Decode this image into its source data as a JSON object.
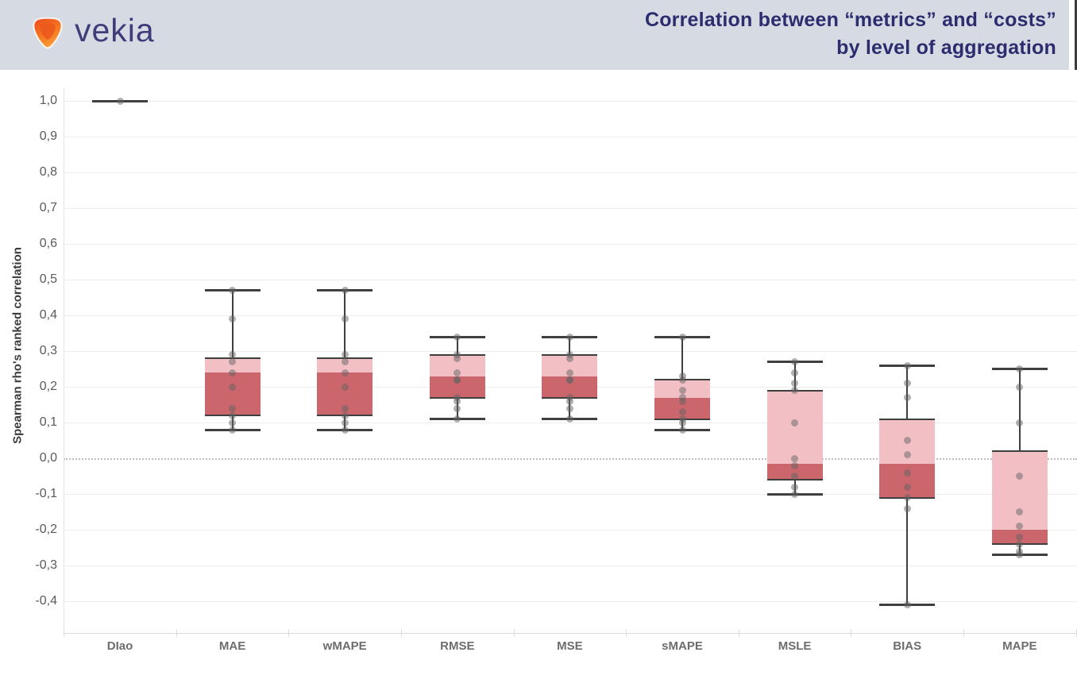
{
  "header": {
    "logo_text": "vekia",
    "title_line1": "Correlation between “metrics” and “costs”",
    "title_line2": "by level of  aggregation"
  },
  "colors": {
    "header_bg": "#d6dbe3",
    "header_edge": "#3a3a40",
    "title_text": "#2b2d6e",
    "logo_navy": "#3d3d7a",
    "logo_orange_dark": "#ee4e1f",
    "logo_orange_light": "#fba33c",
    "box_light_pink": "#f2c0c4",
    "box_dark_red": "#cb666d",
    "box_line": "#3f3f3f",
    "dot_gray": "#646464",
    "grid": "#ededed",
    "zero_line": "#bdbdbd",
    "axis_text": "#5a5a5a",
    "x_label_text": "#6d6d6d"
  },
  "chart_data": {
    "type": "box",
    "title": "Correlation between “metrics” and “costs” by level of aggregation",
    "ylabel": "Spearman rho's ranked correlation",
    "ylim": [
      -0.5,
      1.05
    ],
    "grid": true,
    "zero_line_style": "dotted",
    "decimal_separator": ",",
    "y_ticks": [
      {
        "value": 1.0,
        "label": "1,0"
      },
      {
        "value": 0.9,
        "label": "0,9"
      },
      {
        "value": 0.8,
        "label": "0,8"
      },
      {
        "value": 0.7,
        "label": "0,7"
      },
      {
        "value": 0.6,
        "label": "0,6"
      },
      {
        "value": 0.5,
        "label": "0,5"
      },
      {
        "value": 0.4,
        "label": "0,4"
      },
      {
        "value": 0.3,
        "label": "0,3"
      },
      {
        "value": 0.2,
        "label": "0,2"
      },
      {
        "value": 0.1,
        "label": "0,1"
      },
      {
        "value": 0.0,
        "label": "0,0"
      },
      {
        "value": -0.1,
        "label": "-0,1"
      },
      {
        "value": -0.2,
        "label": "-0,2"
      },
      {
        "value": -0.3,
        "label": "-0,3"
      },
      {
        "value": -0.4,
        "label": "-0,4"
      }
    ],
    "categories": [
      "DIao",
      "MAE",
      "wMAPE",
      "RMSE",
      "MSE",
      "sMAPE",
      "MSLE",
      "BIAS",
      "MAPE"
    ],
    "boxes": [
      {
        "label": "DIao",
        "whisker_high": 1.0,
        "q3": 1.0,
        "median": 1.0,
        "q1": 1.0,
        "whisker_low": 1.0,
        "points": [
          1.0
        ]
      },
      {
        "label": "MAE",
        "whisker_high": 0.47,
        "q3": 0.28,
        "median": 0.24,
        "q1": 0.12,
        "whisker_low": 0.08,
        "points": [
          0.47,
          0.39,
          0.29,
          0.27,
          0.24,
          0.2,
          0.14,
          0.12,
          0.1,
          0.08
        ]
      },
      {
        "label": "wMAPE",
        "whisker_high": 0.47,
        "q3": 0.28,
        "median": 0.24,
        "q1": 0.12,
        "whisker_low": 0.08,
        "points": [
          0.47,
          0.39,
          0.29,
          0.27,
          0.24,
          0.2,
          0.14,
          0.12,
          0.1,
          0.08
        ]
      },
      {
        "label": "RMSE",
        "whisker_high": 0.34,
        "q3": 0.29,
        "median": 0.23,
        "q1": 0.17,
        "whisker_low": 0.11,
        "points": [
          0.34,
          0.29,
          0.28,
          0.24,
          0.22,
          0.22,
          0.17,
          0.16,
          0.14,
          0.11
        ]
      },
      {
        "label": "MSE",
        "whisker_high": 0.34,
        "q3": 0.29,
        "median": 0.23,
        "q1": 0.17,
        "whisker_low": 0.11,
        "points": [
          0.34,
          0.29,
          0.28,
          0.24,
          0.22,
          0.22,
          0.17,
          0.16,
          0.14,
          0.11
        ]
      },
      {
        "label": "sMAPE",
        "whisker_high": 0.34,
        "q3": 0.22,
        "median": 0.17,
        "q1": 0.11,
        "whisker_low": 0.08,
        "points": [
          0.34,
          0.23,
          0.22,
          0.19,
          0.17,
          0.16,
          0.13,
          0.11,
          0.1,
          0.08
        ]
      },
      {
        "label": "MSLE",
        "whisker_high": 0.27,
        "q3": 0.19,
        "median": -0.015,
        "q1": -0.06,
        "whisker_low": -0.1,
        "points": [
          0.27,
          0.24,
          0.21,
          0.19,
          0.1,
          0.0,
          -0.02,
          -0.05,
          -0.08,
          -0.1
        ]
      },
      {
        "label": "BIAS",
        "whisker_high": 0.26,
        "q3": 0.11,
        "median": -0.015,
        "q1": -0.11,
        "whisker_low": -0.41,
        "points": [
          0.26,
          0.21,
          0.17,
          0.05,
          0.01,
          -0.04,
          -0.08,
          -0.11,
          -0.14,
          -0.41
        ]
      },
      {
        "label": "MAPE",
        "whisker_high": 0.25,
        "q3": 0.02,
        "median": -0.2,
        "q1": -0.24,
        "whisker_low": -0.27,
        "points": [
          0.25,
          0.2,
          0.1,
          -0.05,
          -0.15,
          -0.19,
          -0.22,
          -0.24,
          -0.26,
          -0.27
        ]
      }
    ]
  }
}
